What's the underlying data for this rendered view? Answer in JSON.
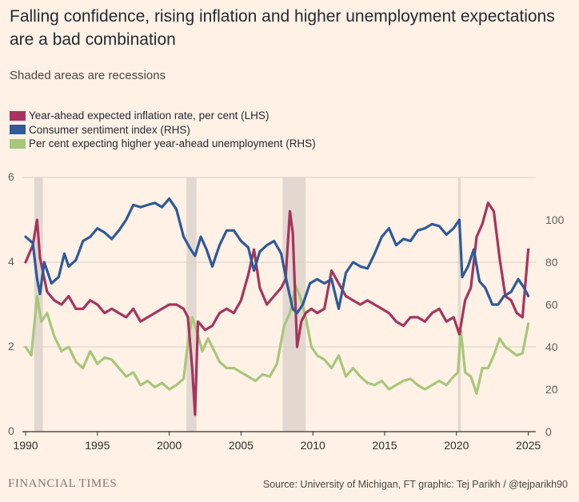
{
  "title": "Falling confidence, rising inflation and higher unemployment expectations are a bad combination",
  "subtitle": "Shaded areas are recessions",
  "source": "Source: University of Michigan, FT graphic: Tej Parikh / @tejparikh90",
  "brand": "FINANCIAL TIMES",
  "colors": {
    "background": "#FFF1E5",
    "inflation": "#A6345E",
    "sentiment": "#2E5A98",
    "unemployment": "#A7C77A",
    "recession": "#E2D8CF",
    "grid": "#D9CEC3",
    "axis": "#33302E"
  },
  "chart_data": {
    "type": "line",
    "x_ticks": [
      "1990",
      "1995",
      "2000",
      "2005",
      "2010",
      "2015",
      "2020",
      "2025"
    ],
    "xlim": [
      1990,
      2025.3
    ],
    "ylim_left": [
      0,
      6
    ],
    "y_ticks_left": [
      "0",
      "2",
      "4",
      "6"
    ],
    "ylim_right": [
      0,
      120
    ],
    "y_ticks_right": [
      "0",
      "20",
      "40",
      "60",
      "80",
      "100"
    ],
    "grid": true,
    "legend_position": "top-left",
    "recessions": [
      [
        1990.6,
        1991.2
      ],
      [
        1990.6,
        1991.2
      ],
      [
        2001.2,
        2001.9
      ],
      [
        2007.9,
        2009.5
      ],
      [
        2020.1,
        2020.3
      ]
    ],
    "series": [
      {
        "name": "Year-ahead expected inflation rate, per cent (LHS)",
        "axis": "left",
        "color": "#A6345E",
        "x": [
          1990.0,
          1990.5,
          1990.8,
          1991.0,
          1991.5,
          1992.0,
          1992.5,
          1993.0,
          1993.5,
          1994.0,
          1994.5,
          1995.0,
          1995.5,
          1996.0,
          1996.5,
          1997.0,
          1997.5,
          1998.0,
          1998.5,
          1999.0,
          1999.5,
          2000.0,
          2000.5,
          2001.0,
          2001.3,
          2001.6,
          2001.8,
          2002.0,
          2002.5,
          2003.0,
          2003.5,
          2004.0,
          2004.5,
          2005.0,
          2005.5,
          2005.9,
          2006.3,
          2006.8,
          2007.3,
          2007.8,
          2008.1,
          2008.4,
          2008.6,
          2008.9,
          2009.2,
          2009.5,
          2009.9,
          2010.3,
          2010.8,
          2011.3,
          2011.8,
          2012.3,
          2012.8,
          2013.3,
          2013.8,
          2014.3,
          2014.8,
          2015.3,
          2015.8,
          2016.3,
          2016.8,
          2017.3,
          2017.8,
          2018.3,
          2018.8,
          2019.3,
          2019.8,
          2020.2,
          2020.6,
          2021.0,
          2021.4,
          2021.8,
          2022.2,
          2022.6,
          2023.0,
          2023.4,
          2023.8,
          2024.2,
          2024.6,
          2025.0
        ],
        "values": [
          4.0,
          4.4,
          5.0,
          4.1,
          3.3,
          3.1,
          3.0,
          3.2,
          2.9,
          2.9,
          3.1,
          3.0,
          2.8,
          2.9,
          2.8,
          2.7,
          2.9,
          2.6,
          2.7,
          2.8,
          2.9,
          3.0,
          3.0,
          2.9,
          2.7,
          1.5,
          0.4,
          2.6,
          2.4,
          2.5,
          2.8,
          2.9,
          2.8,
          3.1,
          3.7,
          4.3,
          3.4,
          3.0,
          3.2,
          3.4,
          3.6,
          5.2,
          4.7,
          2.0,
          2.6,
          2.8,
          2.9,
          2.8,
          2.9,
          3.8,
          3.5,
          3.2,
          3.1,
          3.0,
          3.1,
          3.0,
          2.9,
          2.8,
          2.6,
          2.5,
          2.7,
          2.7,
          2.6,
          2.8,
          2.9,
          2.6,
          2.7,
          2.3,
          3.1,
          3.4,
          4.6,
          4.9,
          5.4,
          5.2,
          4.1,
          3.2,
          3.1,
          2.8,
          2.7,
          4.3
        ]
      },
      {
        "name": "Consumer sentiment index (RHS)",
        "axis": "right",
        "color": "#2E5A98",
        "x": [
          1990.0,
          1990.5,
          1990.8,
          1991.0,
          1991.3,
          1991.8,
          1992.3,
          1992.7,
          1993.0,
          1993.5,
          1994.0,
          1994.5,
          1995.0,
          1995.5,
          1996.0,
          1996.5,
          1997.0,
          1997.5,
          1998.0,
          1998.5,
          1999.0,
          1999.5,
          2000.0,
          2000.5,
          2001.0,
          2001.5,
          2001.8,
          2002.2,
          2002.6,
          2003.0,
          2003.5,
          2004.0,
          2004.5,
          2005.0,
          2005.5,
          2005.9,
          2006.3,
          2006.8,
          2007.3,
          2007.8,
          2008.2,
          2008.6,
          2008.9,
          2009.3,
          2009.8,
          2010.3,
          2010.8,
          2011.3,
          2011.8,
          2012.3,
          2012.8,
          2013.3,
          2013.8,
          2014.3,
          2014.8,
          2015.3,
          2015.8,
          2016.3,
          2016.8,
          2017.3,
          2017.8,
          2018.3,
          2018.8,
          2019.3,
          2019.8,
          2020.2,
          2020.4,
          2020.8,
          2021.2,
          2021.6,
          2022.0,
          2022.5,
          2022.9,
          2023.3,
          2023.8,
          2024.3,
          2024.7,
          2025.0
        ],
        "values": [
          92,
          89,
          72,
          65,
          80,
          70,
          73,
          84,
          78,
          81,
          90,
          92,
          96,
          94,
          91,
          95,
          100,
          107,
          106,
          107,
          108,
          106,
          110,
          105,
          92,
          86,
          83,
          92,
          86,
          78,
          88,
          95,
          95,
          90,
          87,
          76,
          85,
          88,
          90,
          84,
          70,
          58,
          56,
          60,
          70,
          72,
          70,
          72,
          58,
          75,
          80,
          78,
          77,
          84,
          92,
          96,
          88,
          91,
          90,
          95,
          96,
          98,
          97,
          93,
          96,
          100,
          73,
          78,
          86,
          71,
          68,
          60,
          60,
          64,
          66,
          72,
          68,
          64
        ]
      },
      {
        "name": "Per cent expecting higher year-ahead unemployment (RHS)",
        "axis": "right",
        "color": "#A7C77A",
        "x": [
          1990.0,
          1990.4,
          1990.8,
          1991.1,
          1991.5,
          1992.0,
          1992.5,
          1993.0,
          1993.5,
          1994.0,
          1994.5,
          1995.0,
          1995.5,
          1996.0,
          1996.5,
          1997.0,
          1997.5,
          1998.0,
          1998.5,
          1999.0,
          1999.5,
          2000.0,
          2000.5,
          2001.0,
          2001.3,
          2001.6,
          2001.9,
          2002.3,
          2002.7,
          2003.0,
          2003.5,
          2004.0,
          2004.5,
          2005.0,
          2005.5,
          2006.0,
          2006.5,
          2007.0,
          2007.5,
          2008.0,
          2008.4,
          2008.8,
          2009.1,
          2009.5,
          2009.9,
          2010.3,
          2010.8,
          2011.3,
          2011.8,
          2012.3,
          2012.8,
          2013.3,
          2013.8,
          2014.3,
          2014.8,
          2015.3,
          2015.8,
          2016.3,
          2016.8,
          2017.3,
          2017.8,
          2018.3,
          2018.8,
          2019.3,
          2019.8,
          2020.1,
          2020.3,
          2020.6,
          2021.0,
          2021.4,
          2021.8,
          2022.2,
          2022.6,
          2023.0,
          2023.4,
          2023.8,
          2024.2,
          2024.6,
          2025.0
        ],
        "values": [
          40,
          36,
          64,
          52,
          56,
          45,
          38,
          40,
          33,
          30,
          38,
          32,
          35,
          34,
          30,
          26,
          28,
          22,
          24,
          21,
          23,
          20,
          22,
          25,
          42,
          54,
          48,
          38,
          44,
          40,
          33,
          30,
          30,
          28,
          26,
          24,
          27,
          26,
          32,
          50,
          56,
          69,
          64,
          54,
          40,
          36,
          34,
          30,
          36,
          26,
          30,
          26,
          23,
          22,
          24,
          20,
          22,
          24,
          25,
          22,
          20,
          22,
          24,
          22,
          26,
          28,
          48,
          28,
          26,
          18,
          30,
          30,
          36,
          44,
          40,
          38,
          36,
          37,
          51
        ]
      }
    ]
  }
}
